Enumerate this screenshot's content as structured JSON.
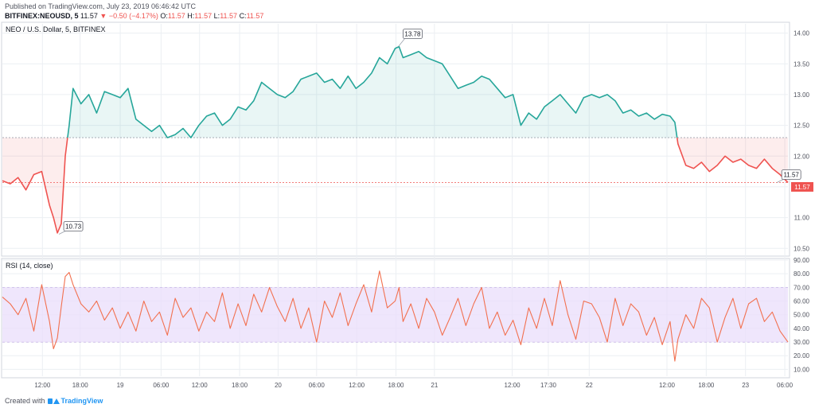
{
  "header": {
    "published": "Published on TradingView.com, July 23, 2019 06:46:42 UTC",
    "symbol": "BITFINEX:NEOUSD, 5",
    "last": "11.57",
    "change": "−0.50 (−4.17%)",
    "o_label": "O:",
    "o": "11.57",
    "h_label": "H:",
    "h": "11.57",
    "l_label": "L:",
    "l": "11.57",
    "c_label": "C:",
    "c": "11.57"
  },
  "footer": {
    "created_with": "Created with",
    "brand": "TradingView"
  },
  "colors": {
    "up": "#26a69a",
    "down": "#ef5350",
    "rsi": "#f2704f",
    "rsi_band": "#e9ddfb",
    "grid": "#eceff3",
    "axis_text": "#50535e"
  },
  "chart_data": [
    {
      "type": "line",
      "title": "NEO / U.S. Dollar, 5, BITFINEX",
      "reference_price": 12.3,
      "last_price": 11.57,
      "last_price_label": "11.57",
      "ylim": [
        10.4,
        14.15
      ],
      "yticks": [
        "10.50",
        "11.00",
        "11.50",
        "12.00",
        "12.50",
        "13.00",
        "13.50",
        "14.00"
      ],
      "yticks_values": [
        10.5,
        11.0,
        11.5,
        12.0,
        12.5,
        13.0,
        13.5,
        14.0
      ],
      "xlim": [
        0,
        100
      ],
      "xticks": [
        {
          "label": "12:00",
          "x": 5.1
        },
        {
          "label": "18:00",
          "x": 9.9
        },
        {
          "label": "19",
          "x": 15.0
        },
        {
          "label": "06:00",
          "x": 20.2
        },
        {
          "label": "12:00",
          "x": 25.1
        },
        {
          "label": "18:00",
          "x": 30.2
        },
        {
          "label": "20",
          "x": 35.1
        },
        {
          "label": "06:00",
          "x": 40.0
        },
        {
          "label": "12:00",
          "x": 45.1
        },
        {
          "label": "18:00",
          "x": 50.1
        },
        {
          "label": "21",
          "x": 55.0
        },
        {
          "label": "12:00",
          "x": 64.9
        },
        {
          "label": "17:30",
          "x": 69.5
        },
        {
          "label": "22",
          "x": 74.7
        },
        {
          "label": "12:00",
          "x": 84.6
        },
        {
          "label": "18:00",
          "x": 89.6
        },
        {
          "label": "23",
          "x": 94.6
        },
        {
          "label": "06:00",
          "x": 99.6
        }
      ],
      "annotations": [
        {
          "label": "10.73",
          "x": 7.2,
          "y": 10.73
        },
        {
          "label": "13.78",
          "x": 50.4,
          "y": 13.78
        },
        {
          "label": "11.57",
          "x": 98.6,
          "y": 11.57
        }
      ],
      "series": [
        {
          "x": [
            0,
            1,
            2,
            3,
            4,
            5,
            6,
            6.5,
            7,
            7.5,
            8,
            8.5,
            9,
            10,
            11,
            12,
            13,
            14,
            15,
            16,
            17,
            18,
            19,
            20,
            21,
            22,
            23,
            24,
            25,
            26,
            27,
            28,
            29,
            30,
            31,
            32,
            33,
            34,
            35,
            36,
            37,
            38,
            39,
            40,
            41,
            42,
            43,
            44,
            45,
            46,
            47,
            48,
            49,
            50,
            50.5,
            51,
            52,
            53,
            54,
            55,
            56,
            57,
            58,
            59,
            60,
            61,
            62,
            63,
            64,
            65,
            66,
            67,
            68,
            69,
            70,
            71,
            72,
            73,
            74,
            75,
            76,
            77,
            78,
            79,
            80,
            81,
            82,
            83,
            84,
            85,
            85.6,
            86,
            87,
            88,
            89,
            90,
            91,
            92,
            93,
            94,
            95,
            96,
            97,
            98,
            99,
            100
          ],
          "y": [
            11.6,
            11.55,
            11.65,
            11.45,
            11.7,
            11.75,
            11.2,
            11.0,
            10.75,
            10.9,
            12.0,
            12.5,
            13.1,
            12.85,
            13.0,
            12.7,
            13.05,
            13.0,
            12.95,
            13.1,
            12.6,
            12.5,
            12.4,
            12.5,
            12.3,
            12.35,
            12.45,
            12.3,
            12.5,
            12.65,
            12.7,
            12.5,
            12.6,
            12.8,
            12.75,
            12.9,
            13.2,
            13.1,
            13.0,
            12.95,
            13.05,
            13.25,
            13.3,
            13.35,
            13.2,
            13.25,
            13.1,
            13.3,
            13.1,
            13.2,
            13.35,
            13.6,
            13.5,
            13.75,
            13.78,
            13.6,
            13.65,
            13.7,
            13.6,
            13.55,
            13.5,
            13.3,
            13.1,
            13.15,
            13.2,
            13.3,
            13.25,
            13.1,
            12.95,
            13.0,
            12.5,
            12.7,
            12.6,
            12.8,
            12.9,
            13.0,
            12.85,
            12.7,
            12.95,
            13.0,
            12.95,
            13.0,
            12.9,
            12.7,
            12.75,
            12.65,
            12.7,
            12.6,
            12.68,
            12.65,
            12.55,
            12.2,
            11.85,
            11.8,
            11.9,
            11.75,
            11.85,
            12.0,
            11.9,
            11.95,
            11.85,
            11.8,
            11.95,
            11.8,
            11.7,
            11.57
          ]
        }
      ]
    },
    {
      "type": "line",
      "title": "RSI (14, close)",
      "ylim": [
        5,
        90
      ],
      "yticks": [
        "10.00",
        "20.00",
        "30.00",
        "40.00",
        "50.00",
        "60.00",
        "70.00",
        "80.00",
        "90.00"
      ],
      "yticks_values": [
        10,
        20,
        30,
        40,
        50,
        60,
        70,
        80,
        90
      ],
      "band": [
        30,
        70
      ],
      "series": [
        {
          "x": [
            0,
            1,
            2,
            3,
            4,
            5,
            6,
            6.5,
            7,
            7.5,
            8,
            8.5,
            9,
            10,
            11,
            12,
            13,
            14,
            15,
            16,
            17,
            18,
            19,
            20,
            21,
            22,
            23,
            24,
            25,
            26,
            27,
            28,
            29,
            30,
            31,
            32,
            33,
            34,
            35,
            36,
            37,
            38,
            39,
            40,
            41,
            42,
            43,
            44,
            45,
            46,
            47,
            48,
            49,
            50,
            50.5,
            51,
            52,
            53,
            54,
            55,
            56,
            57,
            58,
            59,
            60,
            61,
            62,
            63,
            64,
            65,
            66,
            67,
            68,
            69,
            70,
            71,
            72,
            73,
            74,
            75,
            76,
            77,
            78,
            79,
            80,
            81,
            82,
            83,
            84,
            85,
            85.6,
            86,
            87,
            88,
            89,
            90,
            91,
            92,
            93,
            94,
            95,
            96,
            97,
            98,
            99,
            100
          ],
          "y": [
            63,
            58,
            50,
            62,
            38,
            72,
            45,
            25,
            33,
            56,
            78,
            81,
            72,
            58,
            52,
            60,
            46,
            55,
            40,
            52,
            38,
            60,
            45,
            52,
            35,
            62,
            48,
            55,
            38,
            52,
            45,
            66,
            40,
            58,
            42,
            65,
            52,
            70,
            56,
            45,
            62,
            40,
            55,
            30,
            60,
            48,
            66,
            42,
            58,
            72,
            52,
            82,
            55,
            60,
            70,
            45,
            58,
            40,
            62,
            52,
            35,
            48,
            62,
            42,
            58,
            70,
            40,
            52,
            35,
            46,
            28,
            55,
            40,
            62,
            42,
            75,
            50,
            32,
            60,
            58,
            48,
            30,
            62,
            42,
            58,
            52,
            35,
            48,
            28,
            45,
            16,
            32,
            50,
            40,
            62,
            55,
            30,
            48,
            62,
            40,
            58,
            62,
            45,
            52,
            38,
            30
          ]
        }
      ]
    }
  ]
}
